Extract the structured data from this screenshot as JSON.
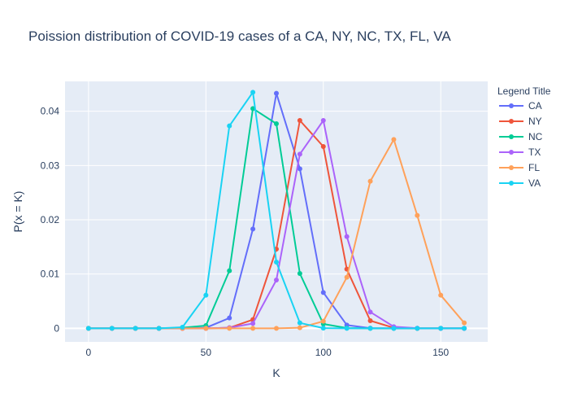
{
  "chart_data": {
    "type": "line",
    "title": "Poission distribution of COVID-19 cases of a CA, NY, NC, TX, FL, VA",
    "xlabel": "K",
    "ylabel": "P(x = K)",
    "x": [
      0,
      10,
      20,
      30,
      40,
      50,
      60,
      70,
      80,
      90,
      100,
      110,
      120,
      130,
      140,
      150,
      160
    ],
    "xlim": [
      -10,
      170
    ],
    "ylim": [
      -0.0025,
      0.0455
    ],
    "xticks": [
      0,
      50,
      100,
      150
    ],
    "xtick_labels": [
      "0",
      "50",
      "100",
      "150"
    ],
    "yticks": [
      0,
      0.01,
      0.02,
      0.03,
      0.04
    ],
    "ytick_labels": [
      "0",
      "0.01",
      "0.02",
      "0.03",
      "0.04"
    ],
    "grid": true,
    "legend": {
      "title": "Legend Title",
      "position": "top-right"
    },
    "series": [
      {
        "name": "CA",
        "color": "#636efa",
        "values": [
          0,
          0,
          0,
          0,
          0,
          0.0001,
          0.0019,
          0.0183,
          0.0433,
          0.0294,
          0.0066,
          0.0006,
          3e-05,
          0,
          0,
          0,
          0
        ]
      },
      {
        "name": "NY",
        "color": "#ef553b",
        "values": [
          0,
          0,
          0,
          0,
          0,
          0,
          0.0001,
          0.0016,
          0.0146,
          0.0383,
          0.0335,
          0.0109,
          0.0014,
          0.0001,
          0,
          0,
          0
        ]
      },
      {
        "name": "NC",
        "color": "#00cc96",
        "values": [
          0,
          0,
          0,
          0,
          0.0001,
          0.0005,
          0.0106,
          0.0405,
          0.0377,
          0.0101,
          0.0008,
          5e-05,
          0,
          0,
          0,
          0,
          0
        ]
      },
      {
        "name": "TX",
        "color": "#ab63fa",
        "values": [
          0,
          0,
          0,
          0,
          0,
          0,
          0.0001,
          0.0009,
          0.0089,
          0.0321,
          0.0383,
          0.0169,
          0.003,
          0.0003,
          2e-05,
          0,
          0
        ]
      },
      {
        "name": "FL",
        "color": "#ffa15a",
        "values": [
          0,
          0,
          0,
          0,
          0,
          0,
          0,
          0,
          0,
          0.0001,
          0.0013,
          0.0094,
          0.0271,
          0.0348,
          0.0208,
          0.0061,
          0.001
        ]
      },
      {
        "name": "VA",
        "color": "#19d3f3",
        "values": [
          0,
          0,
          0,
          0,
          0.0002,
          0.0061,
          0.0373,
          0.0435,
          0.0122,
          0.001,
          3e-05,
          0,
          0,
          0,
          0,
          0,
          0
        ]
      }
    ]
  }
}
